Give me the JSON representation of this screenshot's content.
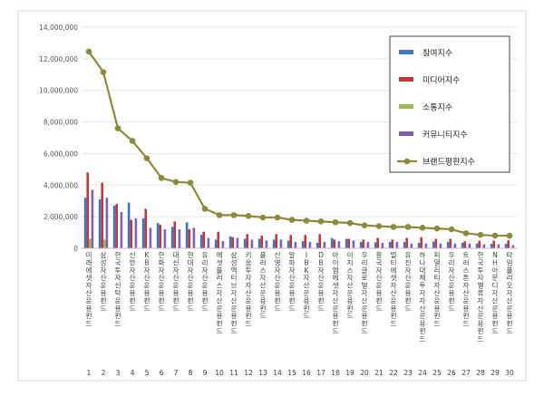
{
  "chart_data": {
    "type": "bar",
    "title": "",
    "xlabel": "",
    "ylabel": "",
    "ylim": [
      0,
      14000000
    ],
    "yticks": [
      "0",
      "2,000,000",
      "4,000,000",
      "6,000,000",
      "8,000,000",
      "10,000,000",
      "12,000,000",
      "14,000,000"
    ],
    "grid": true,
    "legend_position": "top-right",
    "categories": [
      "미래에셋자산운용 펀드",
      "삼성자산운용 펀드",
      "한국투자신탁운용 펀드",
      "신한자산운용 펀드",
      "KB자산운용 펀드",
      "한화자산운용 펀드",
      "대신자산운용 펀드",
      "현대자산운용 펀드",
      "유리자산운용 펀드",
      "에셋플러스자산운용 펀드",
      "삼성액티브자산운용 펀드",
      "키움투자자산운용 펀드",
      "플러스자산운용 펀드",
      "신영자산운용 펀드",
      "알파자산운용 펀드",
      "IBK자산운용 펀드",
      "DB자산운용 펀드",
      "아이엠에셋자산운용 펀드",
      "이지스자산운용 펀드",
      "우리글로벌자산운용 펀드",
      "흥국자산운용 펀드",
      "멀티에셋자산운용 펀드",
      "유진자산운용 펀드",
      "하나대체투자자산운용 펀드",
      "피델리티자산운용 펀드",
      "우리자산운용 펀드",
      "트러스톤자산운용 펀드",
      "한국투자밸류자산운용 펀드",
      "NH아문디자산운용 펀드",
      "타임폴리오자산운용 펀드"
    ],
    "rank_labels": [
      "1",
      "2",
      "3",
      "4",
      "5",
      "6",
      "7",
      "8",
      "9",
      "10",
      "11",
      "12",
      "13",
      "14",
      "15",
      "16",
      "17",
      "18",
      "19",
      "20",
      "21",
      "22",
      "23",
      "24",
      "25",
      "26",
      "27",
      "28",
      "29",
      "30"
    ],
    "series": [
      {
        "name": "참여지수",
        "kind": "bar",
        "color": "#4472c4",
        "values": [
          3200000,
          3100000,
          2700000,
          2900000,
          1900000,
          1600000,
          1350000,
          1650000,
          850000,
          550000,
          750000,
          600000,
          600000,
          550000,
          480000,
          450000,
          350000,
          650000,
          600000,
          400000,
          380000,
          400000,
          400000,
          350000,
          420000,
          400000,
          350000,
          300000,
          280000,
          280000
        ]
      },
      {
        "name": "미디어지수",
        "kind": "bar",
        "color": "#c0393b",
        "values": [
          4800000,
          4150000,
          2800000,
          1800000,
          2500000,
          1500000,
          1700000,
          1200000,
          1050000,
          1050000,
          700000,
          900000,
          800000,
          900000,
          850000,
          850000,
          900000,
          550000,
          600000,
          550000,
          650000,
          550000,
          650000,
          700000,
          600000,
          600000,
          450000,
          480000,
          480000,
          500000
        ]
      },
      {
        "name": "소통지수",
        "kind": "bar",
        "color": "#9bbb59",
        "values": [
          600000,
          550000,
          0,
          0,
          0,
          0,
          0,
          0,
          0,
          0,
          0,
          0,
          0,
          0,
          0,
          0,
          0,
          0,
          0,
          0,
          0,
          0,
          0,
          0,
          0,
          0,
          0,
          0,
          0,
          0
        ]
      },
      {
        "name": "커뮤니티지수",
        "kind": "bar",
        "color": "#7f5fb3",
        "values": [
          3700000,
          3200000,
          2300000,
          1900000,
          1300000,
          1200000,
          1200000,
          1300000,
          650000,
          450000,
          650000,
          550000,
          500000,
          550000,
          400000,
          400000,
          400000,
          450000,
          500000,
          400000,
          350000,
          400000,
          300000,
          300000,
          300000,
          300000,
          300000,
          250000,
          250000,
          200000
        ]
      },
      {
        "name": "브랜드평판지수",
        "kind": "line",
        "color": "#8c8a3d",
        "values": [
          12450000,
          11150000,
          7600000,
          6800000,
          5700000,
          4450000,
          4200000,
          4150000,
          2500000,
          2100000,
          2100000,
          2050000,
          1950000,
          1950000,
          1800000,
          1750000,
          1700000,
          1650000,
          1600000,
          1450000,
          1400000,
          1350000,
          1350000,
          1300000,
          1250000,
          1200000,
          950000,
          850000,
          800000,
          800000
        ]
      }
    ]
  }
}
